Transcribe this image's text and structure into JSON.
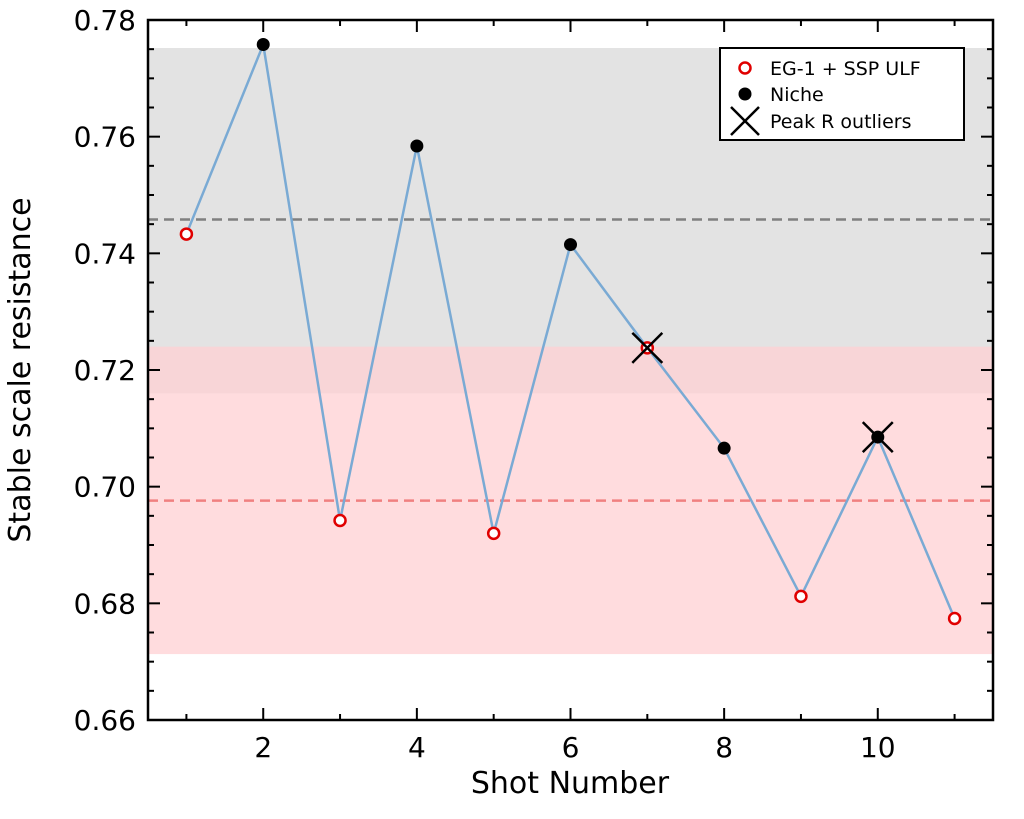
{
  "chart_data": {
    "type": "scatter",
    "xlabel": "Shot Number",
    "ylabel": "Stable scale resistance",
    "xlim": [
      0.5,
      11.5
    ],
    "ylim": [
      0.66,
      0.78
    ],
    "xticks": [
      2,
      4,
      6,
      8,
      10
    ],
    "yticks": [
      0.66,
      0.68,
      0.7,
      0.72,
      0.74,
      0.76,
      0.78
    ],
    "ytick_labels": [
      "0.66",
      "0.68",
      "0.70",
      "0.72",
      "0.74",
      "0.76",
      "0.78"
    ],
    "xtick_labels": [
      "2",
      "4",
      "6",
      "8",
      "10"
    ],
    "line": {
      "color": "#7aaad4",
      "x": [
        1,
        2,
        3,
        4,
        5,
        6,
        7,
        8,
        9,
        10,
        11
      ],
      "y": [
        0.7433,
        0.7758,
        0.6942,
        0.7584,
        0.692,
        0.7415,
        0.7238,
        0.7066,
        0.6812,
        0.7085,
        0.6774
      ]
    },
    "bands": [
      {
        "name": "niche-band",
        "y0": 0.716,
        "y1": 0.7752,
        "mean": 0.7458,
        "color": "#d9d9d9",
        "line_color": "#808080"
      },
      {
        "name": "eg1-band",
        "y0": 0.6713,
        "y1": 0.724,
        "mean": 0.6976,
        "color": "#ffd0d3",
        "line_color": "#f08080"
      }
    ],
    "series": [
      {
        "name": "EG-1 + SSP ULF",
        "marker": "open-circle",
        "color": "#e00000",
        "x": [
          1,
          3,
          5,
          7,
          9,
          11
        ],
        "y": [
          0.7433,
          0.6942,
          0.692,
          0.7238,
          0.6812,
          0.6774
        ]
      },
      {
        "name": "Niche",
        "marker": "filled-circle",
        "color": "#000000",
        "x": [
          2,
          4,
          6,
          8,
          10
        ],
        "y": [
          0.7758,
          0.7584,
          0.7415,
          0.7066,
          0.7085
        ]
      },
      {
        "name": "Peak R outliers",
        "marker": "x",
        "color": "#000000",
        "x": [
          7,
          10
        ],
        "y": [
          0.7238,
          0.7085
        ]
      }
    ],
    "legend": {
      "position": "top-right",
      "entries": [
        "EG-1 + SSP ULF",
        "Niche",
        "Peak R outliers"
      ]
    }
  }
}
